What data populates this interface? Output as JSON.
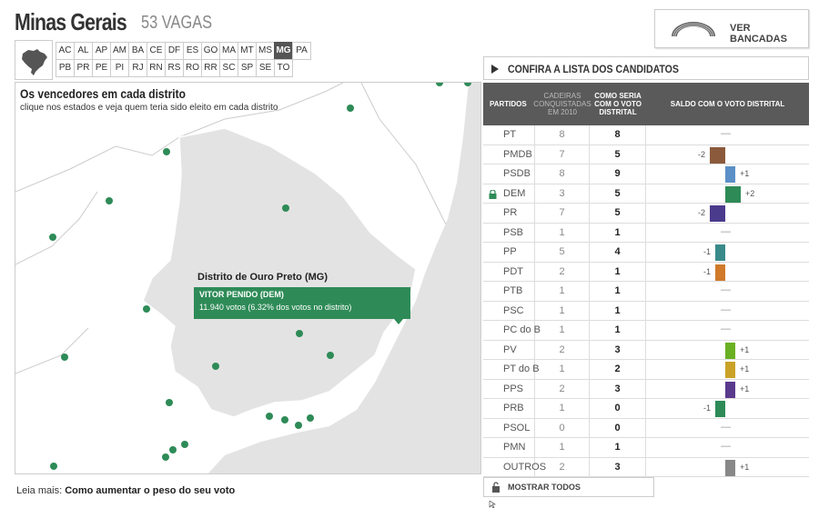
{
  "header": {
    "title": "Minas Gerais",
    "vagas": "53 VAGAS",
    "ver_bancadas": "VER BANCADAS"
  },
  "states": {
    "row1": [
      "AC",
      "AL",
      "AP",
      "AM",
      "BA",
      "CE",
      "DF",
      "ES",
      "GO",
      "MA",
      "MT",
      "MS",
      "MG",
      "PA"
    ],
    "row2": [
      "PB",
      "PR",
      "PE",
      "PI",
      "RJ",
      "RN",
      "RS",
      "RO",
      "RR",
      "SC",
      "SP",
      "SE",
      "TO"
    ],
    "active": "MG"
  },
  "map": {
    "title": "Os vencedores em cada distrito",
    "subtitle": "clique nos estados e veja quem teria sido eleito em cada distrito",
    "district": "Distrito de Ouro Preto (MG)",
    "winner": "VITOR PENIDO (DEM)",
    "votes": "11.940 votos (6.32% dos votos no distrito)",
    "dot_color": "#2e8b57"
  },
  "leia_mais": {
    "prefix": "Leia mais:",
    "link": "Como aumentar o peso do seu voto"
  },
  "panel": {
    "confira": "CONFIRA A LISTA DOS CANDIDATOS",
    "headers": {
      "partidos": "PARTIDOS",
      "cadeiras": "CADEIRAS CONQUISTADAS EM 2010",
      "como": "COMO SERIA COM O VOTO DISTRITAL",
      "saldo": "SALDO COM O VOTO DISTRITAL"
    },
    "mostrar": "MOSTRAR TODOS"
  },
  "parties": [
    {
      "name": "PT",
      "cad": "8",
      "como": "8",
      "saldo": 0,
      "saldo_label": "",
      "color": ""
    },
    {
      "name": "PMDB",
      "cad": "7",
      "como": "5",
      "saldo": -2,
      "saldo_label": "-2",
      "color": "#8b5a3c"
    },
    {
      "name": "PSDB",
      "cad": "8",
      "como": "9",
      "saldo": 1,
      "saldo_label": "+1",
      "color": "#5b8fc7"
    },
    {
      "name": "DEM",
      "cad": "3",
      "como": "5",
      "saldo": 2,
      "saldo_label": "+2",
      "color": "#2e8b57",
      "locked": true
    },
    {
      "name": "PR",
      "cad": "7",
      "como": "5",
      "saldo": -2,
      "saldo_label": "-2",
      "color": "#4b3b8c"
    },
    {
      "name": "PSB",
      "cad": "1",
      "como": "1",
      "saldo": 0,
      "saldo_label": "",
      "color": ""
    },
    {
      "name": "PP",
      "cad": "5",
      "como": "4",
      "saldo": -1,
      "saldo_label": "-1",
      "color": "#3a8a8a"
    },
    {
      "name": "PDT",
      "cad": "2",
      "como": "1",
      "saldo": -1,
      "saldo_label": "-1",
      "color": "#d07a2a"
    },
    {
      "name": "PTB",
      "cad": "1",
      "como": "1",
      "saldo": 0,
      "saldo_label": "",
      "color": ""
    },
    {
      "name": "PSC",
      "cad": "1",
      "como": "1",
      "saldo": 0,
      "saldo_label": "",
      "color": ""
    },
    {
      "name": "PC do B",
      "cad": "1",
      "como": "1",
      "saldo": 0,
      "saldo_label": "",
      "color": ""
    },
    {
      "name": "PV",
      "cad": "2",
      "como": "3",
      "saldo": 1,
      "saldo_label": "+1",
      "color": "#6ab023"
    },
    {
      "name": "PT do B",
      "cad": "1",
      "como": "2",
      "saldo": 1,
      "saldo_label": "+1",
      "color": "#c9a227"
    },
    {
      "name": "PPS",
      "cad": "2",
      "como": "3",
      "saldo": 1,
      "saldo_label": "+1",
      "color": "#5a3a8c"
    },
    {
      "name": "PRB",
      "cad": "1",
      "como": "0",
      "saldo": -1,
      "saldo_label": "-1",
      "color": "#2e8b57"
    },
    {
      "name": "PSOL",
      "cad": "0",
      "como": "0",
      "saldo": 0,
      "saldo_label": "",
      "color": ""
    },
    {
      "name": "PMN",
      "cad": "1",
      "como": "1",
      "saldo": 0,
      "saldo_label": "",
      "color": ""
    },
    {
      "name": "OUTROS",
      "cad": "2",
      "como": "3",
      "saldo": 1,
      "saldo_label": "+1",
      "color": "#888888"
    }
  ],
  "dash": "—"
}
